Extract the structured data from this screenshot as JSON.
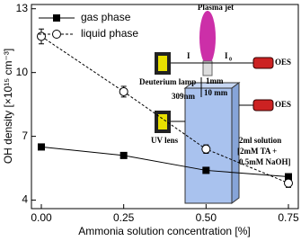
{
  "chart_data": {
    "type": "line",
    "xlabel": "Ammonia solution concentration [%]",
    "ylabel": "OH density [×10¹⁵ cm⁻³]",
    "x": [
      0,
      0.25,
      0.5,
      0.75
    ],
    "series": [
      {
        "name": "gas phase",
        "color": "#000000",
        "marker": "square",
        "dash": "solid",
        "values": [
          6.5,
          6.1,
          5.4,
          5.1
        ]
      },
      {
        "name": "liquid phase",
        "color": "#000000",
        "marker": "open-circle",
        "dash": "dashed",
        "values": [
          11.7,
          9.1,
          6.4,
          4.8
        ],
        "errors": [
          0.35,
          0.25,
          0.2,
          0.2
        ]
      }
    ],
    "xlim": [
      -0.03,
      0.78
    ],
    "ylim": [
      3.6,
      13.2
    ],
    "xticks": [
      {
        "value": 0,
        "label": "0.00"
      },
      {
        "value": 0.25,
        "label": "0.25"
      },
      {
        "value": 0.5,
        "label": "0.50"
      },
      {
        "value": 0.75,
        "label": "0.75"
      }
    ],
    "yticks": [
      4,
      7,
      10,
      13
    ],
    "legend": "upper left",
    "inset": {
      "plasma_jet": "Plasma jet",
      "i": "I",
      "i0": "I",
      "i0_sub": "0",
      "gap1": "1mm",
      "gap2": "10 mm",
      "oes_top": "OES",
      "oes_bottom": "OES",
      "lamp": "Deuterium lamp",
      "wavelength": "309nm",
      "lens": "UV lens",
      "solution1": "2ml solution",
      "solution2": "[2mM TA +",
      "solution3": "0.5mM NaOH]"
    }
  }
}
